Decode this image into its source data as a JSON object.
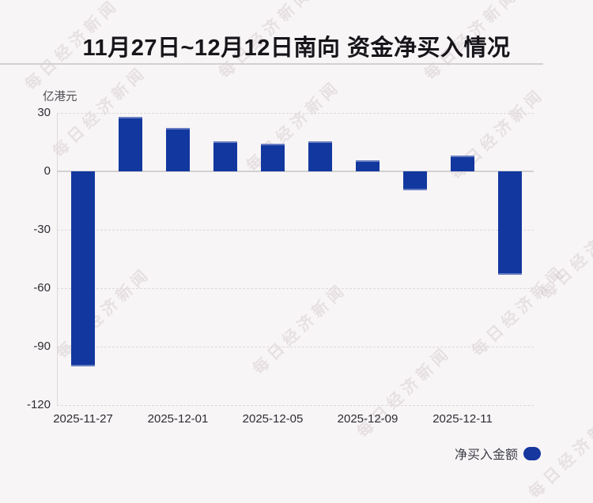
{
  "header": {
    "title": "11月27日~12月12日南向 资金净买入情况"
  },
  "watermark": {
    "text": "每日经济新闻"
  },
  "chart_data": {
    "type": "bar",
    "title": "11月27日~12月12日南向 资金净买入情况",
    "ylabel": "亿港元",
    "xlabel": "",
    "legend_label": "净买入金额",
    "legend_position": "bottom-right",
    "ylim": [
      -120,
      30
    ],
    "y_ticks": [
      30,
      0,
      -30,
      -60,
      -90,
      -120
    ],
    "grid": "horizontal dashed, solid zero line",
    "values": [
      -100,
      27.9,
      22.1,
      15.5,
      14,
      15.5,
      5.8,
      -9.7,
      8.2,
      -53
    ],
    "x_ticks": [
      {
        "label": "2025-11-27",
        "bar_index": 0
      },
      {
        "label": "2025-12-01",
        "bar_index": 2
      },
      {
        "label": "2025-12-05",
        "bar_index": 4
      },
      {
        "label": "2025-12-09",
        "bar_index": 6
      },
      {
        "label": "2025-12-11",
        "bar_index": 8
      }
    ],
    "colors": {
      "bar": "#12389f",
      "background": "#f8f5f6",
      "title_text": "#17141a",
      "axis_text": "#2c2c34"
    }
  }
}
